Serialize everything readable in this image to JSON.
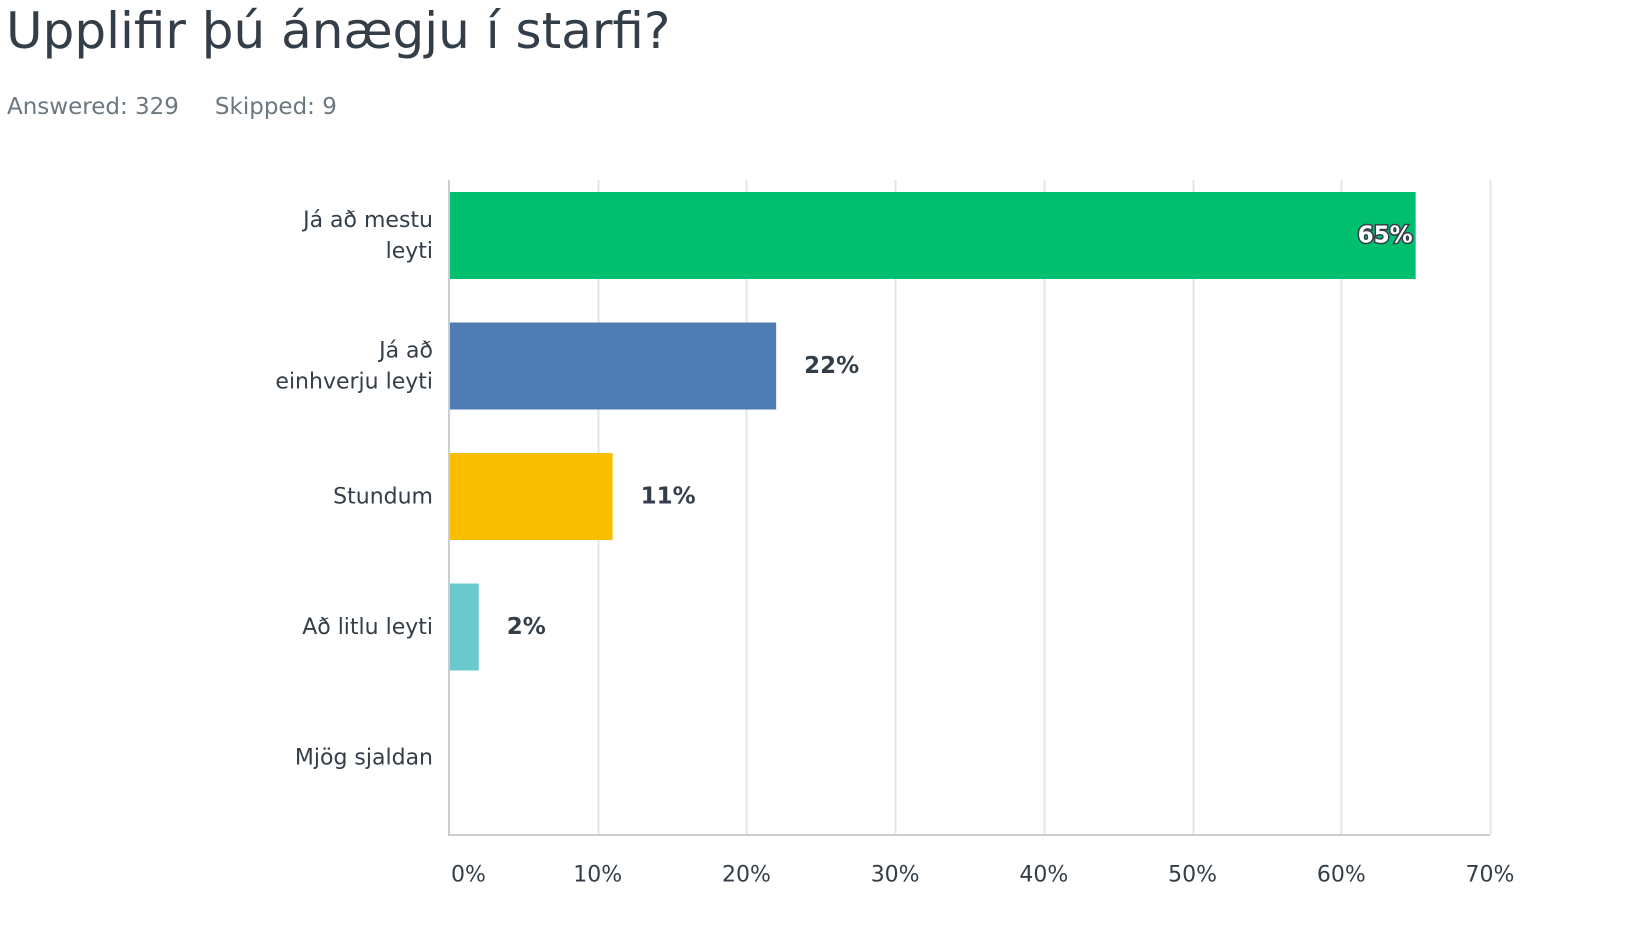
{
  "question": {
    "title": "Upplifir þú ánægju í starfi?",
    "answered_label": "Answered: 329",
    "skipped_label": "Skipped: 9"
  },
  "chart_data": {
    "type": "bar",
    "orientation": "horizontal",
    "title": "",
    "xlabel": "",
    "ylabel": "",
    "categories": [
      [
        "Já að mestu",
        "leyti"
      ],
      [
        "Já að",
        "einhverju leyti"
      ],
      [
        "Stundum"
      ],
      [
        "Að litlu leyti"
      ],
      [
        "Mjög sjaldan"
      ]
    ],
    "values": [
      65,
      22,
      11,
      2,
      0
    ],
    "value_labels": [
      "65%",
      "22%",
      "11%",
      "2%",
      ""
    ],
    "colors": [
      "#00bf6f",
      "#507cb6",
      "#f9be00",
      "#6bc8cd",
      "#ff8b4f"
    ],
    "xlim": [
      0,
      70
    ],
    "x_ticks": [
      0,
      10,
      20,
      30,
      40,
      50,
      60,
      70
    ],
    "x_tick_labels": [
      "0%",
      "10%",
      "20%",
      "30%",
      "40%",
      "50%",
      "60%",
      "70%"
    ],
    "grid": true,
    "legend": "none"
  }
}
